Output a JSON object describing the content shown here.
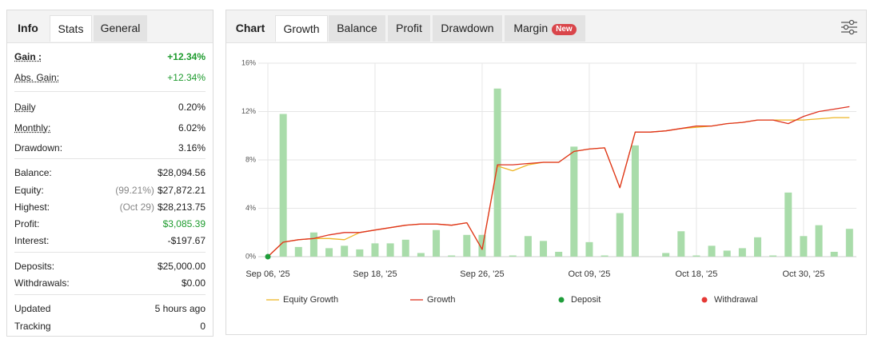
{
  "left_panel": {
    "tabs": [
      "Info",
      "Stats",
      "General"
    ],
    "groups": [
      [
        {
          "label": "Gain :",
          "value": "+12.34%"
        },
        {
          "label": "Abs. Gain:",
          "value": "+12.34%"
        }
      ],
      [
        {
          "label": "Daily",
          "value": "0.20%"
        },
        {
          "label": "Monthly:",
          "value": "6.02%"
        },
        {
          "label": "Drawdown:",
          "value": "3.16%"
        }
      ],
      [
        {
          "label": "Balance:",
          "value": "$28,094.56"
        },
        {
          "label": "Equity:",
          "note": "(99.21%)",
          "value": "$27,872.21"
        },
        {
          "label": "Highest:",
          "note": "(Oct 29)",
          "value": "$28,213.75"
        },
        {
          "label": "Profit:",
          "value": "$3,085.39"
        },
        {
          "label": "Interest:",
          "value": "-$197.67"
        }
      ],
      [
        {
          "label": "Deposits:",
          "value": "$25,000.00"
        },
        {
          "label": "Withdrawals:",
          "value": "$0.00"
        }
      ],
      [
        {
          "label": "Updated",
          "value": "5 hours ago"
        },
        {
          "label": "Tracking",
          "value": "0"
        }
      ]
    ]
  },
  "right_panel": {
    "tabs": [
      "Chart",
      "Growth",
      "Balance",
      "Profit",
      "Drawdown",
      "Margin"
    ],
    "badge": "New"
  },
  "chart_data": {
    "type": "combo",
    "categories": [
      "Sep 06, '25",
      null,
      null,
      null,
      null,
      null,
      null,
      "Sep 18, '25",
      null,
      null,
      null,
      null,
      null,
      null,
      "Sep 26, '25",
      null,
      null,
      null,
      null,
      null,
      null,
      "Oct 09, '25",
      null,
      null,
      null,
      null,
      null,
      null,
      "Oct 18, '25",
      null,
      null,
      null,
      null,
      null,
      null,
      "Oct 30, '25",
      null,
      null,
      null
    ],
    "series": [
      {
        "type": "bar",
        "color": "#a9dcaa",
        "values": [
          null,
          11.8,
          0.8,
          2.0,
          0.7,
          0.9,
          0.6,
          1.1,
          1.1,
          1.4,
          0.3,
          2.2,
          0.1,
          1.8,
          1.8,
          13.9,
          0.1,
          1.7,
          1.3,
          0.4,
          9.1,
          1.2,
          0.1,
          3.6,
          9.2,
          null,
          0.3,
          2.1,
          0.1,
          0.9,
          0.5,
          0.7,
          1.6,
          0.1,
          5.3,
          1.7,
          2.6,
          0.4,
          2.3
        ]
      },
      {
        "name": "Equity Growth",
        "type": "line",
        "color": "#eeb627",
        "values": [
          0,
          1.2,
          1.4,
          1.5,
          1.5,
          1.4,
          2.0,
          2.2,
          2.4,
          2.6,
          2.7,
          2.7,
          2.6,
          2.8,
          0.6,
          7.5,
          7.1,
          7.6,
          7.8,
          7.8,
          8.7,
          8.9,
          9.0,
          5.7,
          10.3,
          10.3,
          10.4,
          10.6,
          10.7,
          10.8,
          11.0,
          11.1,
          11.3,
          11.3,
          11.3,
          11.3,
          11.4,
          11.5,
          11.5
        ]
      },
      {
        "name": "Growth",
        "type": "line",
        "color": "#df3320",
        "values": [
          0,
          1.2,
          1.4,
          1.5,
          1.8,
          2.0,
          2.0,
          2.2,
          2.4,
          2.6,
          2.7,
          2.7,
          2.6,
          2.8,
          0.6,
          7.6,
          7.6,
          7.7,
          7.8,
          7.8,
          8.7,
          8.9,
          9.0,
          5.7,
          10.3,
          10.3,
          10.4,
          10.6,
          10.8,
          10.8,
          11.0,
          11.1,
          11.3,
          11.3,
          11.0,
          11.6,
          12.0,
          12.2,
          12.4
        ]
      },
      {
        "name": "Deposit",
        "type": "scatter",
        "color": "#1f9d3a",
        "values": [
          0,
          null,
          null,
          null,
          null,
          null,
          null,
          null,
          null,
          null,
          null,
          null,
          null,
          null,
          null,
          null,
          null,
          null,
          null,
          null,
          null,
          null,
          null,
          null,
          null,
          null,
          null,
          null,
          null,
          null,
          null,
          null,
          null,
          null,
          null,
          null,
          null,
          null,
          null
        ]
      },
      {
        "name": "Withdrawal",
        "type": "scatter",
        "color": "#e53935",
        "values": [
          null,
          null,
          null,
          null,
          null,
          null,
          null,
          null,
          null,
          null,
          null,
          null,
          null,
          null,
          null,
          null,
          null,
          null,
          null,
          null,
          null,
          null,
          null,
          null,
          null,
          null,
          null,
          null,
          null,
          null,
          null,
          null,
          null,
          null,
          null,
          null,
          null,
          null,
          null
        ]
      }
    ],
    "ylim": [
      0,
      16
    ],
    "yticks": [
      {
        "value": 0,
        "label": "0%"
      },
      {
        "value": 4,
        "label": "4%"
      },
      {
        "value": 8,
        "label": "8%"
      },
      {
        "value": 12,
        "label": "12%"
      },
      {
        "value": 16,
        "label": "16%"
      }
    ],
    "grid": true
  }
}
